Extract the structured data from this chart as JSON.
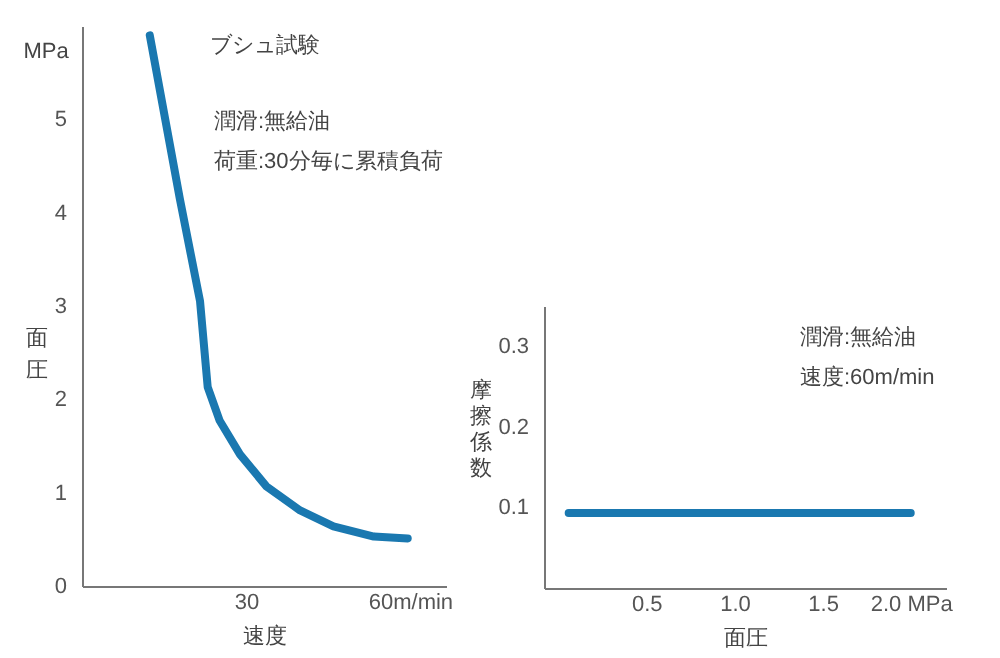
{
  "chart_data": [
    {
      "type": "line",
      "title": "ブシュ試験",
      "xlabel": "速度",
      "ylabel": "面圧",
      "annotations": [
        "MPa",
        "潤滑:無給油",
        "荷重:30分毎に累積負荷"
      ],
      "x": [
        12.4,
        17.9,
        21.6,
        23,
        25.2,
        28.9,
        33.7,
        39.9,
        46,
        53.4,
        59.6
      ],
      "series": [
        {
          "color": "#1a78b0",
          "values": [
            5.9,
            4.15,
            3.05,
            2.13,
            1.77,
            1.41,
            1.07,
            0.81,
            0.64,
            0.53,
            0.51
          ]
        }
      ],
      "xlim": [
        0,
        66.6
      ],
      "xticks": [
        30,
        {
          "value": 60,
          "label": "60m/min"
        }
      ],
      "ylim": [
        0,
        6
      ],
      "yticks": [
        0,
        1,
        2,
        3,
        4,
        5
      ],
      "grid": false
    },
    {
      "type": "line",
      "xlabel": "面圧",
      "ylabel": "摩擦係数",
      "annotations": [
        "潤滑:無給油",
        "速度:60m/min"
      ],
      "x": [
        0.06,
        2.0
      ],
      "series": [
        {
          "color": "#1a78b0",
          "values": [
            0.093,
            0.093
          ]
        }
      ],
      "xlim": [
        -0.08,
        2.2
      ],
      "xticks": [
        {
          "value": 0.5,
          "label": "0.5"
        },
        {
          "value": 1.0,
          "label": "1.0"
        },
        {
          "value": 1.5,
          "label": "1.5"
        },
        {
          "value": 2.0,
          "label": "2.0 MPa"
        }
      ],
      "ylim": [
        0,
        0.35
      ],
      "yticks": [
        0.1,
        0.2,
        0.3
      ],
      "grid": false
    }
  ]
}
